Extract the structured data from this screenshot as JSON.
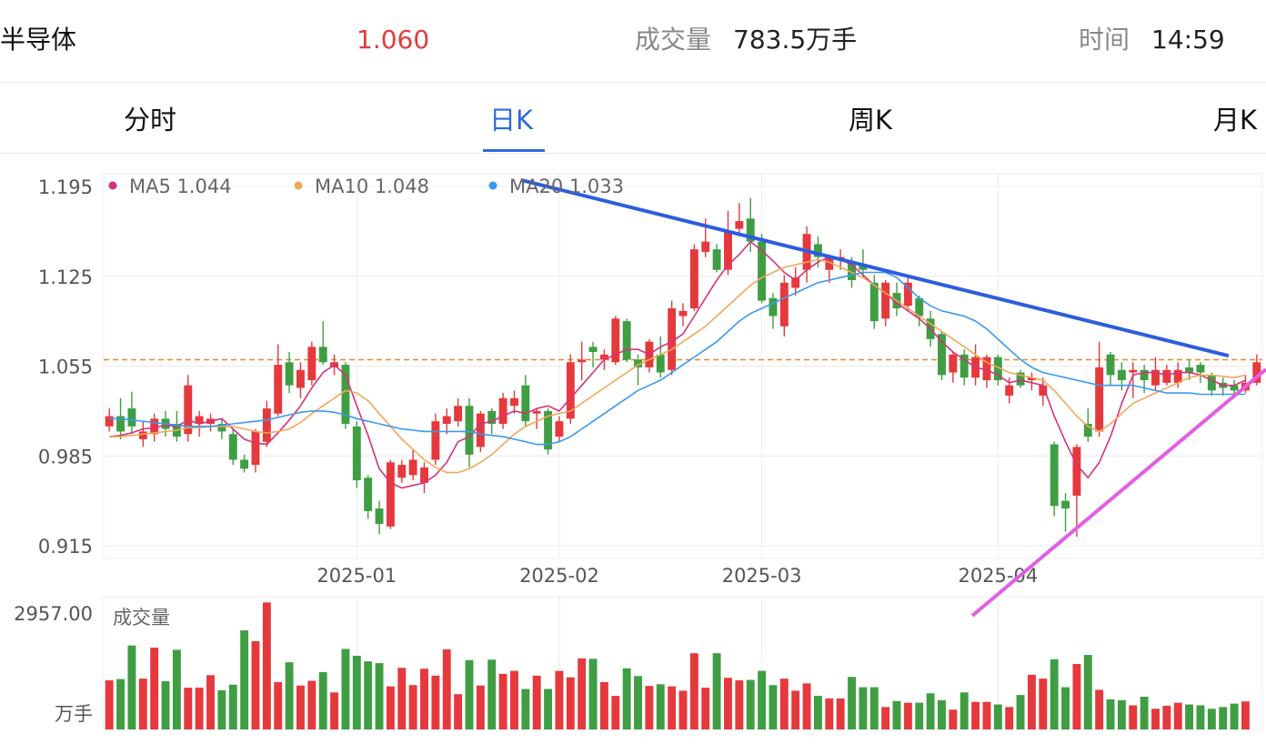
{
  "header": {
    "name": "半导体",
    "price": "1.060",
    "volume_label": "成交量",
    "volume_value": "783.5万手",
    "time_label": "时间",
    "time_value": "14:59"
  },
  "tabs": [
    {
      "label": "分时",
      "active": false
    },
    {
      "label": "日K",
      "active": true
    },
    {
      "label": "周K",
      "active": false
    },
    {
      "label": "月K",
      "active": false
    }
  ],
  "legend": [
    {
      "label": "MA5",
      "value": "1.044",
      "color": "#d6327a"
    },
    {
      "label": "MA10",
      "value": "1.048",
      "color": "#f0a85a"
    },
    {
      "label": "MA20",
      "value": "1.033",
      "color": "#3a9af0"
    }
  ],
  "colors": {
    "up": "#e5393d",
    "down": "#3f9e43",
    "reference": "#e8872c",
    "resistance": "#2c5de0",
    "support": "#e35ee3"
  },
  "chart_data": {
    "type": "candlestick",
    "y_ticks": [
      "1.195",
      "1.125",
      "1.055",
      "0.985",
      "0.915"
    ],
    "ylim": [
      0.915,
      1.195
    ],
    "x_labels": [
      {
        "label": "2025-01",
        "index": 22
      },
      {
        "label": "2025-02",
        "index": 40
      },
      {
        "label": "2025-03",
        "index": 58
      },
      {
        "label": "2025-04",
        "index": 79
      }
    ],
    "reference_price": 1.06,
    "volume_label": "成交量",
    "volume_max_label": "2957.00",
    "volume_unit_label": "万手",
    "volume_max": 2957,
    "trendlines": {
      "resistance": {
        "from": [
          36.6,
          1.2
        ],
        "to": [
          99.5,
          1.063
        ]
      },
      "support": {
        "from": [
          75.4,
          0.868
        ],
        "to": [
          99.5,
          1.042
        ]
      }
    },
    "candles": [
      [
        1.008,
        1.016,
        1.022,
        1.004,
        "up"
      ],
      [
        1.016,
        1.004,
        1.03,
        0.998,
        "down"
      ],
      [
        1.022,
        1.008,
        1.035,
        1.002,
        "down"
      ],
      [
        1.004,
        0.998,
        1.012,
        0.992,
        "up"
      ],
      [
        1.002,
        1.014,
        1.018,
        0.996,
        "up"
      ],
      [
        1.014,
        1.006,
        1.02,
        1.0,
        "down"
      ],
      [
        1.01,
        1.0,
        1.02,
        0.996,
        "down"
      ],
      [
        1.002,
        1.04,
        1.048,
        0.996,
        "up"
      ],
      [
        1.01,
        1.016,
        1.02,
        1.0,
        "up"
      ],
      [
        1.01,
        1.014,
        1.018,
        1.004,
        "up"
      ],
      [
        1.01,
        1.004,
        1.014,
        0.998,
        "down"
      ],
      [
        1.002,
        0.982,
        1.006,
        0.978,
        "down"
      ],
      [
        0.982,
        0.975,
        0.986,
        0.972,
        "down"
      ],
      [
        0.978,
        1.004,
        1.006,
        0.972,
        "up"
      ],
      [
        0.996,
        1.022,
        1.028,
        0.992,
        "up"
      ],
      [
        1.018,
        1.056,
        1.072,
        1.016,
        "up"
      ],
      [
        1.058,
        1.04,
        1.066,
        1.034,
        "down"
      ],
      [
        1.038,
        1.052,
        1.058,
        1.03,
        "up"
      ],
      [
        1.044,
        1.07,
        1.074,
        1.04,
        "up"
      ],
      [
        1.07,
        1.058,
        1.09,
        1.056,
        "down"
      ],
      [
        1.054,
        1.058,
        1.064,
        1.048,
        "up"
      ],
      [
        1.056,
        1.01,
        1.058,
        1.006,
        "down"
      ],
      [
        1.008,
        0.966,
        1.012,
        0.96,
        "down"
      ],
      [
        0.968,
        0.942,
        0.97,
        0.936,
        "down"
      ],
      [
        0.944,
        0.932,
        0.95,
        0.924,
        "down"
      ],
      [
        0.93,
        0.98,
        0.982,
        0.928,
        "up"
      ],
      [
        0.968,
        0.978,
        0.982,
        0.964,
        "up"
      ],
      [
        0.97,
        0.982,
        0.99,
        0.966,
        "up"
      ],
      [
        0.976,
        0.964,
        0.98,
        0.956,
        "up"
      ],
      [
        0.982,
        1.012,
        1.018,
        0.978,
        "up"
      ],
      [
        1.01,
        1.016,
        1.022,
        1.002,
        "up"
      ],
      [
        1.012,
        1.024,
        1.03,
        1.008,
        "up"
      ],
      [
        1.024,
        0.986,
        1.03,
        0.976,
        "down"
      ],
      [
        0.992,
        1.018,
        1.02,
        0.988,
        "up"
      ],
      [
        1.02,
        1.01,
        1.022,
        1.002,
        "down"
      ],
      [
        1.01,
        1.03,
        1.034,
        1.006,
        "up"
      ],
      [
        1.024,
        1.03,
        1.036,
        1.018,
        "up"
      ],
      [
        1.04,
        1.012,
        1.048,
        1.008,
        "down"
      ],
      [
        1.018,
        1.02,
        1.022,
        1.006,
        "up"
      ],
      [
        1.02,
        0.99,
        1.022,
        0.986,
        "down"
      ],
      [
        1.0,
        1.012,
        1.016,
        0.996,
        "up"
      ],
      [
        1.014,
        1.058,
        1.064,
        1.01,
        "up"
      ],
      [
        1.058,
        1.06,
        1.074,
        1.044,
        "up"
      ],
      [
        1.066,
        1.07,
        1.074,
        1.054,
        "down"
      ],
      [
        1.064,
        1.06,
        1.068,
        1.052,
        "up"
      ],
      [
        1.058,
        1.092,
        1.094,
        1.056,
        "up"
      ],
      [
        1.09,
        1.06,
        1.092,
        1.058,
        "down"
      ],
      [
        1.06,
        1.054,
        1.064,
        1.04,
        "down"
      ],
      [
        1.054,
        1.074,
        1.076,
        1.05,
        "up"
      ],
      [
        1.064,
        1.05,
        1.078,
        1.046,
        "down"
      ],
      [
        1.052,
        1.1,
        1.106,
        1.048,
        "up"
      ],
      [
        1.098,
        1.094,
        1.104,
        1.086,
        "up"
      ],
      [
        1.1,
        1.146,
        1.15,
        1.098,
        "up"
      ],
      [
        1.144,
        1.152,
        1.17,
        1.14,
        "up"
      ],
      [
        1.146,
        1.13,
        1.15,
        1.128,
        "down"
      ],
      [
        1.13,
        1.16,
        1.176,
        1.126,
        "up"
      ],
      [
        1.162,
        1.168,
        1.182,
        1.156,
        "up"
      ],
      [
        1.17,
        1.152,
        1.186,
        1.144,
        "down"
      ],
      [
        1.152,
        1.106,
        1.158,
        1.104,
        "down"
      ],
      [
        1.108,
        1.094,
        1.112,
        1.084,
        "down"
      ],
      [
        1.086,
        1.12,
        1.126,
        1.078,
        "up"
      ],
      [
        1.116,
        1.124,
        1.132,
        1.11,
        "up"
      ],
      [
        1.13,
        1.158,
        1.164,
        1.12,
        "up"
      ],
      [
        1.14,
        1.15,
        1.156,
        1.132,
        "down"
      ],
      [
        1.13,
        1.14,
        1.142,
        1.12,
        "up"
      ],
      [
        1.14,
        1.138,
        1.146,
        1.13,
        "up"
      ],
      [
        1.136,
        1.122,
        1.14,
        1.116,
        "down"
      ],
      [
        1.13,
        1.134,
        1.146,
        1.124,
        "down"
      ],
      [
        1.12,
        1.09,
        1.126,
        1.084,
        "down"
      ],
      [
        1.12,
        1.092,
        1.122,
        1.086,
        "up"
      ],
      [
        1.112,
        1.1,
        1.12,
        1.094,
        "down"
      ],
      [
        1.12,
        1.102,
        1.124,
        1.098,
        "up"
      ],
      [
        1.108,
        1.094,
        1.11,
        1.086,
        "down"
      ],
      [
        1.092,
        1.076,
        1.098,
        1.07,
        "down"
      ],
      [
        1.08,
        1.048,
        1.082,
        1.044,
        "down"
      ],
      [
        1.064,
        1.05,
        1.066,
        1.042,
        "up"
      ],
      [
        1.064,
        1.046,
        1.068,
        1.04,
        "down"
      ],
      [
        1.062,
        1.046,
        1.072,
        1.04,
        "up"
      ],
      [
        1.062,
        1.044,
        1.064,
        1.038,
        "up"
      ],
      [
        1.062,
        1.044,
        1.064,
        1.04,
        "down"
      ],
      [
        1.04,
        1.032,
        1.046,
        1.026,
        "up"
      ],
      [
        1.05,
        1.04,
        1.052,
        1.038,
        "down"
      ],
      [
        1.044,
        1.046,
        1.05,
        1.036,
        "up"
      ],
      [
        1.04,
        1.032,
        1.046,
        1.024,
        "up"
      ],
      [
        0.994,
        0.946,
        0.996,
        0.938,
        "down"
      ],
      [
        0.95,
        0.944,
        0.956,
        0.926,
        "down"
      ],
      [
        0.992,
        0.954,
        0.994,
        0.922,
        "up"
      ],
      [
        1.0,
        1.01,
        1.022,
        0.996,
        "down"
      ],
      [
        1.004,
        1.054,
        1.074,
        1.0,
        "up"
      ],
      [
        1.048,
        1.064,
        1.066,
        1.04,
        "down"
      ],
      [
        1.052,
        1.044,
        1.058,
        1.036,
        "down"
      ],
      [
        1.052,
        1.05,
        1.058,
        1.03,
        "up"
      ],
      [
        1.052,
        1.044,
        1.056,
        1.034,
        "down"
      ],
      [
        1.04,
        1.052,
        1.062,
        1.036,
        "up"
      ],
      [
        1.052,
        1.042,
        1.056,
        1.04,
        "up"
      ],
      [
        1.042,
        1.052,
        1.058,
        1.038,
        "up"
      ],
      [
        1.05,
        1.054,
        1.06,
        1.044,
        "down"
      ],
      [
        1.056,
        1.05,
        1.058,
        1.042,
        "down"
      ],
      [
        1.048,
        1.036,
        1.05,
        1.032,
        "down"
      ],
      [
        1.042,
        1.038,
        1.046,
        1.032,
        "down"
      ],
      [
        1.04,
        1.036,
        1.044,
        1.03,
        "down"
      ],
      [
        1.036,
        1.042,
        1.048,
        1.034,
        "up"
      ],
      [
        1.042,
        1.058,
        1.064,
        1.04,
        "up"
      ]
    ],
    "ma5": [
      1.0,
      1.001,
      1.003,
      1.006,
      1.007,
      1.009,
      1.008,
      1.013,
      1.01,
      1.012,
      1.014,
      1.006,
      0.998,
      0.995,
      0.994,
      1.003,
      1.013,
      1.024,
      1.038,
      1.05,
      1.056,
      1.048,
      1.024,
      1.001,
      0.975,
      0.964,
      0.96,
      0.962,
      0.964,
      0.97,
      0.98,
      0.996,
      1.0,
      1.01,
      1.012,
      1.016,
      1.02,
      1.018,
      1.022,
      1.024,
      1.02,
      1.03,
      1.04,
      1.05,
      1.06,
      1.064,
      1.068,
      1.068,
      1.064,
      1.07,
      1.074,
      1.08,
      1.094,
      1.108,
      1.122,
      1.134,
      1.142,
      1.152,
      1.145,
      1.137,
      1.128,
      1.122,
      1.13,
      1.136,
      1.14,
      1.138,
      1.134,
      1.126,
      1.118,
      1.112,
      1.104,
      1.098,
      1.092,
      1.084,
      1.074,
      1.066,
      1.06,
      1.054,
      1.052,
      1.048,
      1.042,
      1.044,
      1.042,
      1.04,
      1.016,
      0.996,
      0.978,
      0.968,
      0.98,
      1.0,
      1.026,
      1.048,
      1.05,
      1.05,
      1.048,
      1.05,
      1.05,
      1.048,
      1.044,
      1.04,
      1.04,
      1.044
    ],
    "ma10": [
      1.0,
      1.0,
      1.001,
      1.002,
      1.003,
      1.004,
      1.005,
      1.007,
      1.007,
      1.008,
      1.008,
      1.008,
      1.006,
      1.004,
      1.003,
      1.004,
      1.006,
      1.011,
      1.018,
      1.024,
      1.03,
      1.036,
      1.034,
      1.028,
      1.018,
      1.008,
      0.998,
      0.99,
      0.982,
      0.976,
      0.972,
      0.972,
      0.975,
      0.98,
      0.986,
      0.994,
      1.002,
      1.008,
      1.012,
      1.016,
      1.018,
      1.02,
      1.026,
      1.032,
      1.038,
      1.044,
      1.05,
      1.056,
      1.06,
      1.064,
      1.068,
      1.074,
      1.08,
      1.086,
      1.094,
      1.102,
      1.11,
      1.118,
      1.124,
      1.128,
      1.132,
      1.134,
      1.136,
      1.138,
      1.136,
      1.132,
      1.128,
      1.124,
      1.118,
      1.112,
      1.106,
      1.1,
      1.094,
      1.088,
      1.082,
      1.076,
      1.07,
      1.064,
      1.058,
      1.054,
      1.05,
      1.048,
      1.046,
      1.044,
      1.036,
      1.026,
      1.016,
      1.008,
      1.004,
      1.01,
      1.018,
      1.026,
      1.03,
      1.034,
      1.038,
      1.042,
      1.046,
      1.048,
      1.048,
      1.047,
      1.046,
      1.048
    ],
    "ma20": [
      1.014,
      1.014,
      1.013,
      1.012,
      1.011,
      1.01,
      1.009,
      1.008,
      1.008,
      1.008,
      1.009,
      1.01,
      1.011,
      1.012,
      1.013,
      1.015,
      1.017,
      1.019,
      1.02,
      1.02,
      1.019,
      1.017,
      1.014,
      1.012,
      1.01,
      1.008,
      1.006,
      1.005,
      1.004,
      1.004,
      1.004,
      1.004,
      1.004,
      1.002,
      1.001,
      1.0,
      0.998,
      0.996,
      0.994,
      0.994,
      0.996,
      1.0,
      1.006,
      1.012,
      1.018,
      1.024,
      1.03,
      1.036,
      1.04,
      1.044,
      1.05,
      1.056,
      1.062,
      1.068,
      1.074,
      1.082,
      1.09,
      1.096,
      1.1,
      1.104,
      1.108,
      1.112,
      1.116,
      1.12,
      1.122,
      1.124,
      1.126,
      1.128,
      1.128,
      1.128,
      1.124,
      1.116,
      1.108,
      1.102,
      1.098,
      1.096,
      1.094,
      1.09,
      1.084,
      1.076,
      1.068,
      1.06,
      1.054,
      1.05,
      1.048,
      1.046,
      1.044,
      1.042,
      1.04,
      1.04,
      1.04,
      1.04,
      1.038,
      1.036,
      1.034,
      1.034,
      1.034,
      1.033,
      1.033,
      1.033,
      1.033,
      1.033
    ],
    "volumes": [
      1140,
      1170,
      1950,
      1180,
      1900,
      1120,
      1850,
      970,
      970,
      1260,
      910,
      1040,
      2300,
      2050,
      2950,
      1100,
      1560,
      1020,
      1130,
      1330,
      860,
      1870,
      1710,
      1580,
      1540,
      1000,
      1430,
      1030,
      1410,
      1250,
      1860,
      820,
      1610,
      1020,
      1620,
      1290,
      1360,
      940,
      1250,
      940,
      1360,
      1210,
      1650,
      1640,
      1100,
      780,
      1420,
      1240,
      1010,
      1050,
      1000,
      900,
      1770,
      970,
      1770,
      1200,
      1140,
      1150,
      1360,
      1030,
      1180,
      900,
      1070,
      780,
      720,
      720,
      1220,
      980,
      980,
      520,
      660,
      620,
      620,
      840,
      680,
      460,
      860,
      640,
      640,
      580,
      520,
      800,
      1270,
      1180,
      1630,
      980,
      1520,
      1730,
      920,
      700,
      680,
      560,
      760,
      480,
      550,
      620,
      580,
      560,
      480,
      520,
      600,
      650
    ]
  }
}
